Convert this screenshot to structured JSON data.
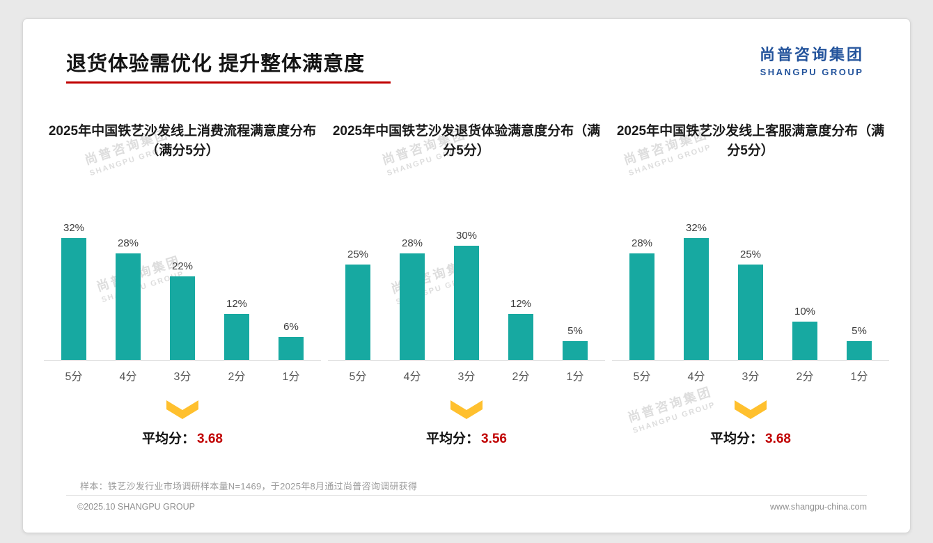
{
  "page": {
    "title": "退货体验需优化 提升整体满意度",
    "logo": {
      "cn": "尚普咨询集团",
      "en": "SHANGPU GROUP"
    },
    "watermark": {
      "cn": "尚普咨询集团",
      "en": "SHANGPU GROUP"
    },
    "footnote": "样本：铁艺沙发行业市场调研样本量N=1469，于2025年8月通过尚普咨询调研获得",
    "footer": {
      "left": "©2025.10 SHANGPU GROUP",
      "right": "www.shangpu-china.com"
    }
  },
  "colors": {
    "bar": "#17A9A1",
    "accent": "#C00000",
    "arrow": "#FFC02E"
  },
  "chart_data": [
    {
      "type": "bar",
      "title": "2025年中国铁艺沙发线上消费流程满意度分布（满分5分）",
      "categories": [
        "5分",
        "4分",
        "3分",
        "2分",
        "1分"
      ],
      "values": [
        32,
        28,
        22,
        12,
        6
      ],
      "value_suffix": "%",
      "ylim": [
        0,
        35
      ],
      "grid": false,
      "average_label": "平均分：",
      "average_value": "3.68"
    },
    {
      "type": "bar",
      "title": "2025年中国铁艺沙发退货体验满意度分布（满分5分）",
      "categories": [
        "5分",
        "4分",
        "3分",
        "2分",
        "1分"
      ],
      "values": [
        25,
        28,
        30,
        12,
        5
      ],
      "value_suffix": "%",
      "ylim": [
        0,
        35
      ],
      "grid": false,
      "average_label": "平均分：",
      "average_value": "3.56"
    },
    {
      "type": "bar",
      "title": "2025年中国铁艺沙发线上客服满意度分布（满分5分）",
      "categories": [
        "5分",
        "4分",
        "3分",
        "2分",
        "1分"
      ],
      "values": [
        28,
        32,
        25,
        10,
        5
      ],
      "value_suffix": "%",
      "ylim": [
        0,
        35
      ],
      "grid": false,
      "average_label": "平均分：",
      "average_value": "3.68"
    }
  ]
}
